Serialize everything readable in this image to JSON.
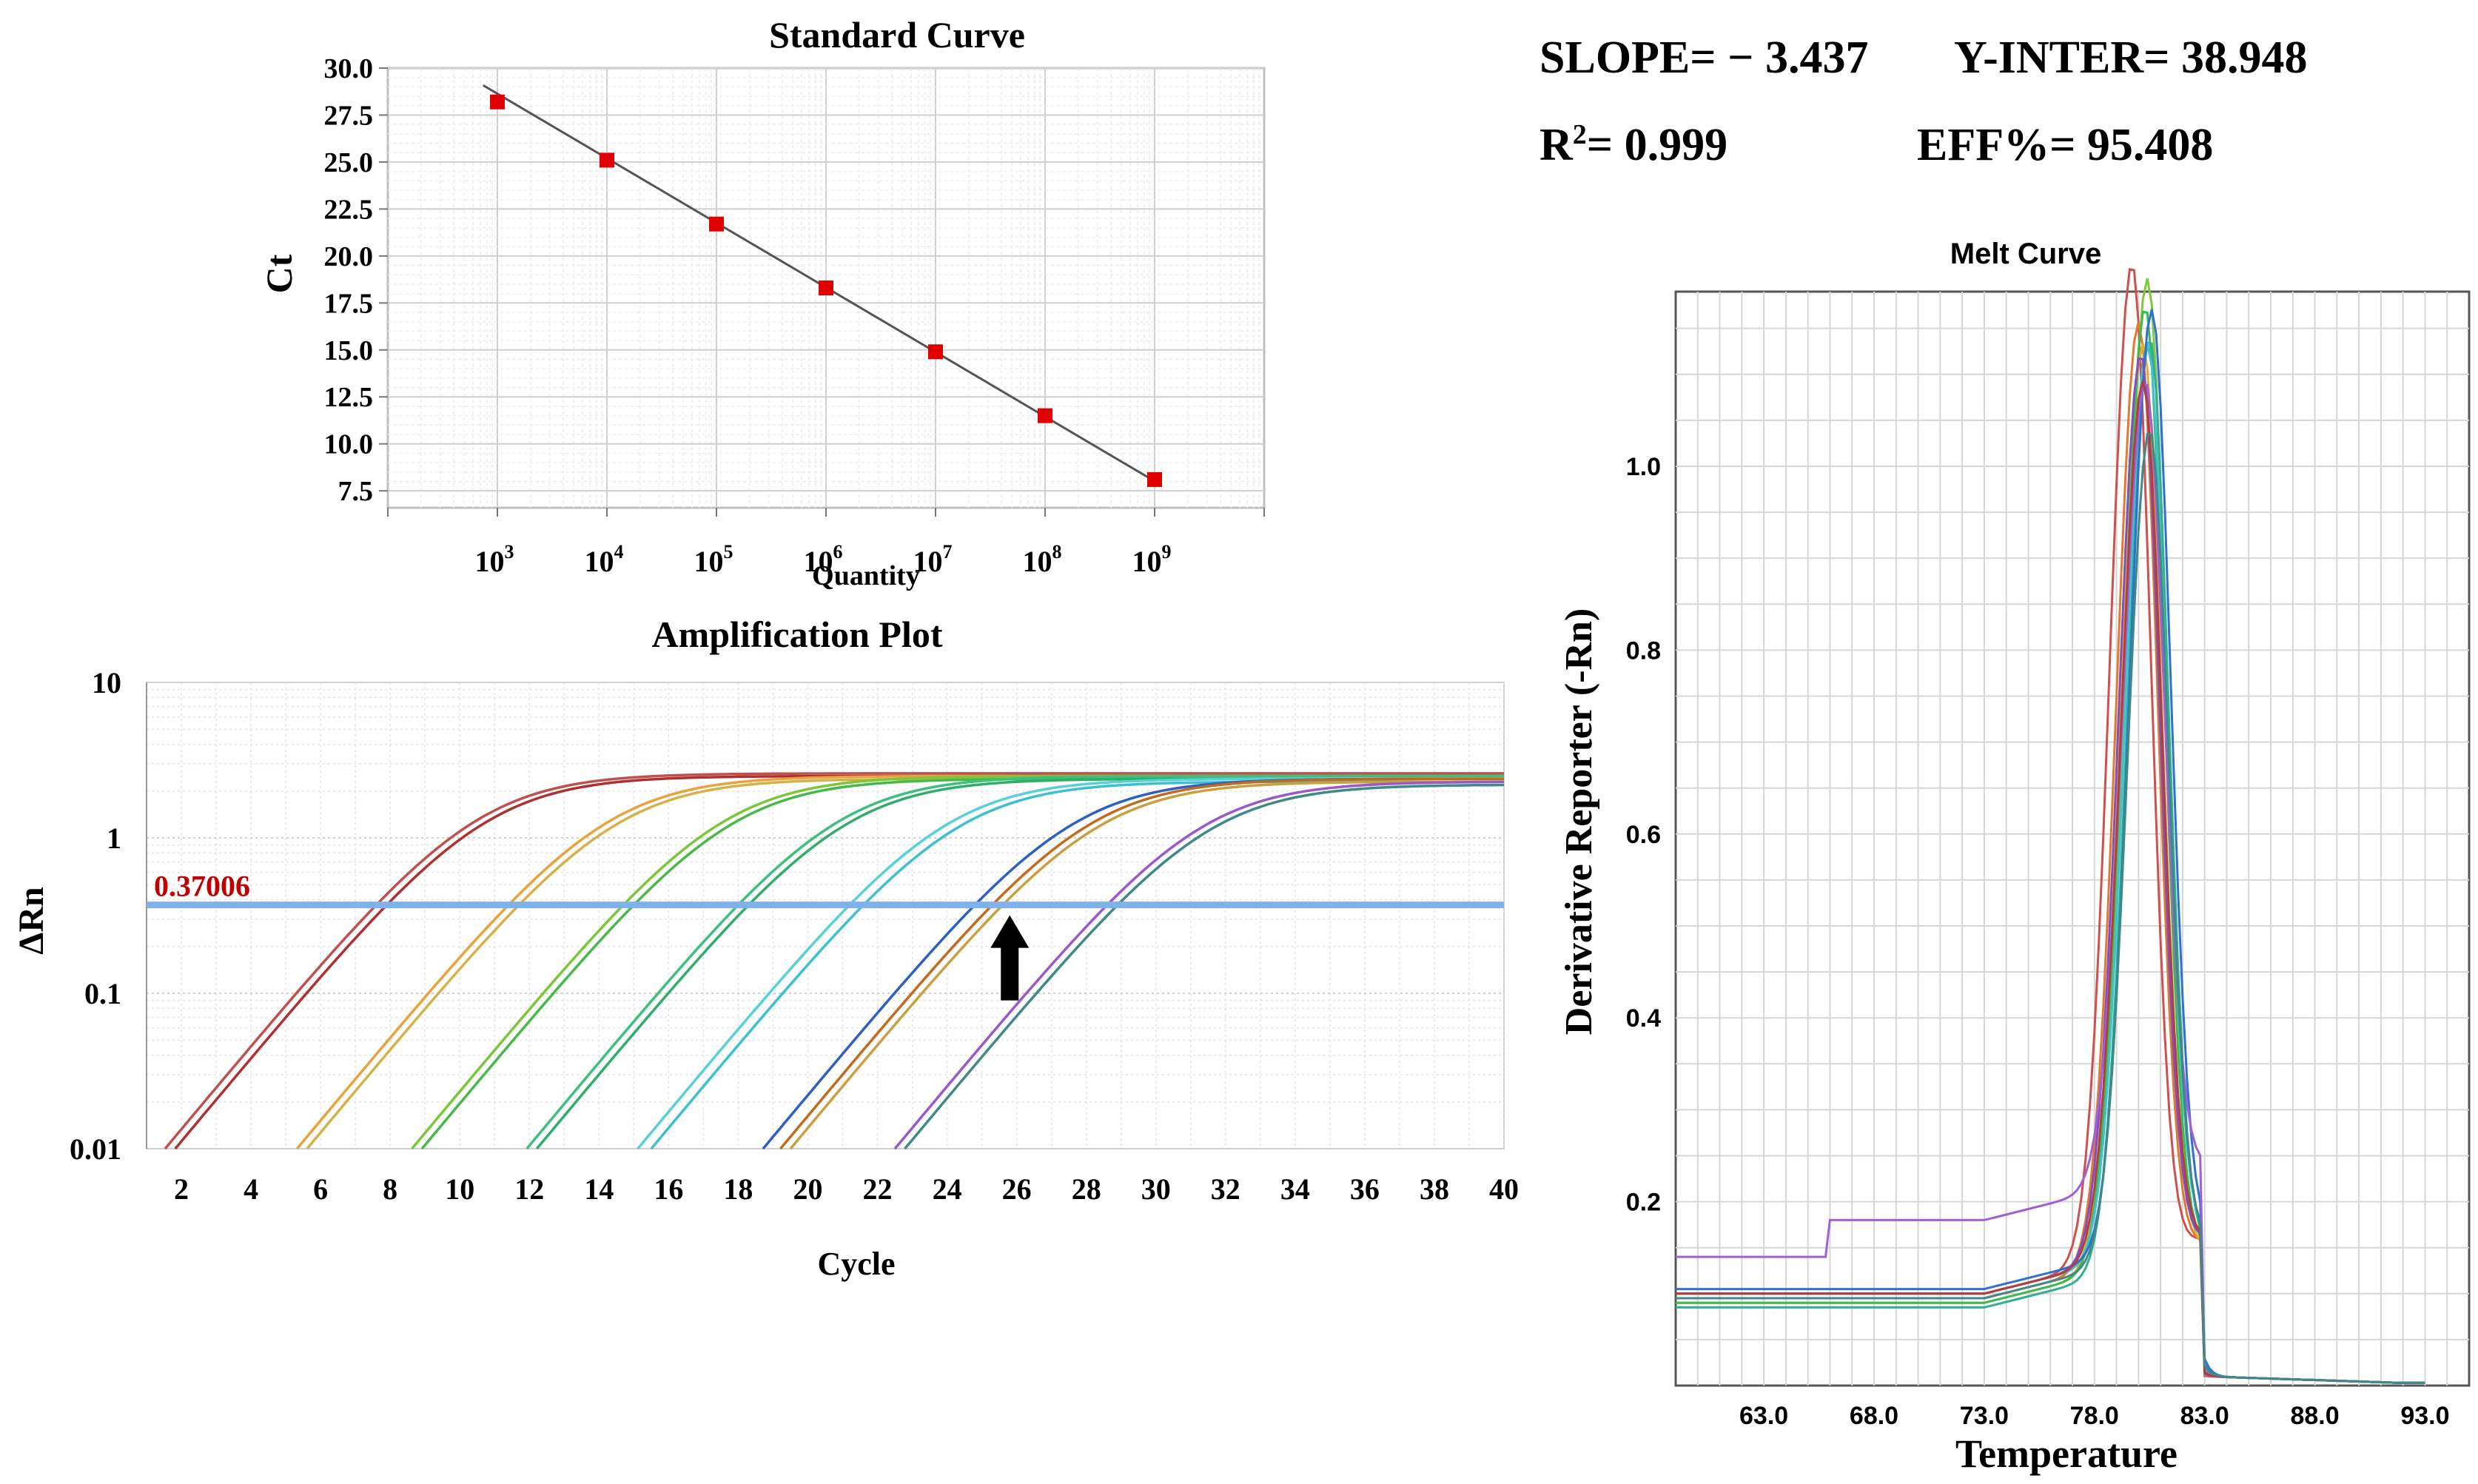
{
  "stats": {
    "slope": "SLOPE= − 3.437",
    "y_inter": "Y-INTER= 38.948",
    "r2_prefix": "R",
    "r2_sup": "2",
    "r2_value": "= 0.999",
    "eff": "EFF%= 95.408"
  },
  "colors": {
    "standard_points": "#e00000",
    "standard_line": "#555555",
    "threshold_line": "#7fb2e8",
    "threshold_label": "#c00000",
    "grid": "#d9d9d9",
    "arrow": "#000000"
  },
  "chart_data": [
    {
      "type": "scatter",
      "title": "Standard Curve",
      "xlabel": "Quantity",
      "ylabel": "Ct",
      "x_scale": "log10",
      "xlim_log10": [
        2,
        10
      ],
      "ylim": [
        6.6,
        30.0
      ],
      "grid": true,
      "xtick_labels": [
        {
          "base": "10",
          "exp": "3",
          "log10": 3
        },
        {
          "base": "10",
          "exp": "4",
          "log10": 4
        },
        {
          "base": "10",
          "exp": "5",
          "log10": 5
        },
        {
          "base": "10",
          "exp": "6",
          "log10": 6
        },
        {
          "base": "10",
          "exp": "7",
          "log10": 7
        },
        {
          "base": "10",
          "exp": "8",
          "log10": 8
        },
        {
          "base": "10",
          "exp": "9",
          "log10": 9
        }
      ],
      "ytick_labels": [
        "30.0",
        "27.5",
        "25.0",
        "22.5",
        "20.0",
        "17.5",
        "15.0",
        "12.5",
        "10.0",
        "7.5"
      ],
      "ytick_values": [
        30.0,
        27.5,
        25.0,
        22.5,
        20.0,
        17.5,
        15.0,
        12.5,
        10.0,
        7.5
      ],
      "points": [
        {
          "x_log10": 3,
          "y": 28.2
        },
        {
          "x_log10": 4,
          "y": 25.1
        },
        {
          "x_log10": 5,
          "y": 21.7
        },
        {
          "x_log10": 6,
          "y": 18.3
        },
        {
          "x_log10": 7,
          "y": 14.9
        },
        {
          "x_log10": 8,
          "y": 11.5
        },
        {
          "x_log10": 9,
          "y": 8.1
        }
      ],
      "fit_line": {
        "slope": -3.437,
        "intercept": 38.948,
        "x_from_log10": 2.87,
        "x_to_log10": 9.0
      }
    },
    {
      "type": "line",
      "title": "Amplification Plot",
      "xlabel": "Cycle",
      "ylabel": "ΔRn",
      "y_scale": "log10",
      "xlim": [
        1,
        40
      ],
      "ylim": [
        0.01,
        10
      ],
      "grid": true,
      "xtick_labels": [
        "2",
        "4",
        "6",
        "8",
        "10",
        "12",
        "14",
        "16",
        "18",
        "20",
        "22",
        "24",
        "26",
        "28",
        "30",
        "32",
        "34",
        "36",
        "38",
        "40"
      ],
      "xtick_values": [
        2,
        4,
        6,
        8,
        10,
        12,
        14,
        16,
        18,
        20,
        22,
        24,
        26,
        28,
        30,
        32,
        34,
        36,
        38,
        40
      ],
      "ytick_labels": [
        "10",
        "1",
        "0.1",
        "0.01"
      ],
      "ytick_values": [
        10,
        1,
        0.1,
        0.01
      ],
      "threshold": {
        "value": 0.37006,
        "label": "0.37006"
      },
      "arrow_at_cycle": 25.8,
      "series": [
        {
          "ct": 7.6,
          "color": "#c0504d",
          "plateau": 2.6
        },
        {
          "ct": 7.9,
          "color": "#b03030",
          "plateau": 2.5
        },
        {
          "ct": 11.4,
          "color": "#e8a33c",
          "plateau": 2.5
        },
        {
          "ct": 11.7,
          "color": "#d4b24a",
          "plateau": 2.4
        },
        {
          "ct": 14.7,
          "color": "#7cc63a",
          "plateau": 2.5
        },
        {
          "ct": 15.0,
          "color": "#49b84a",
          "plateau": 2.4
        },
        {
          "ct": 18.0,
          "color": "#3fbf7f",
          "plateau": 2.5
        },
        {
          "ct": 18.3,
          "color": "#2fae6a",
          "plateau": 2.4
        },
        {
          "ct": 21.2,
          "color": "#58d0d8",
          "plateau": 2.4
        },
        {
          "ct": 21.6,
          "color": "#3cc0d0",
          "plateau": 2.3
        },
        {
          "ct": 24.8,
          "color": "#2f5fc0",
          "plateau": 2.4
        },
        {
          "ct": 25.3,
          "color": "#c46a1e",
          "plateau": 2.4
        },
        {
          "ct": 25.6,
          "color": "#c9a040",
          "plateau": 2.3
        },
        {
          "ct": 28.6,
          "color": "#9a59c9",
          "plateau": 2.3
        },
        {
          "ct": 28.9,
          "color": "#3e8a86",
          "plateau": 2.2
        }
      ]
    },
    {
      "type": "line",
      "title": "Melt Curve",
      "xlabel": "Temperature",
      "ylabel": "Derivative Reporter (-Rn)",
      "xlim": [
        59.0,
        95.0
      ],
      "ylim": [
        0.0,
        1.19
      ],
      "grid": true,
      "xtick_labels": [
        "63.0",
        "68.0",
        "73.0",
        "78.0",
        "83.0",
        "88.0",
        "93.0"
      ],
      "xtick_values": [
        63.0,
        68.0,
        73.0,
        78.0,
        83.0,
        88.0,
        93.0
      ],
      "ytick_labels": [
        "1.0",
        "0.8",
        "0.6",
        "0.4",
        "0.2"
      ],
      "ytick_values": [
        1.0,
        0.8,
        0.6,
        0.4,
        0.2
      ],
      "series": [
        {
          "peak_temp": 79.7,
          "peak": 1.18,
          "base": 0.1,
          "color": "#d05050"
        },
        {
          "peak_temp": 80.0,
          "peak": 1.12,
          "base": 0.095,
          "color": "#e07a30"
        },
        {
          "peak_temp": 80.2,
          "peak": 1.1,
          "base": 0.09,
          "color": "#e0b030"
        },
        {
          "peak_temp": 80.4,
          "peak": 1.16,
          "base": 0.1,
          "color": "#80c840"
        },
        {
          "peak_temp": 80.3,
          "peak": 1.14,
          "base": 0.09,
          "color": "#40b850"
        },
        {
          "peak_temp": 80.5,
          "peak": 1.11,
          "base": 0.085,
          "color": "#30b090"
        },
        {
          "peak_temp": 80.4,
          "peak": 1.09,
          "base": 0.1,
          "color": "#40c0d0"
        },
        {
          "peak_temp": 80.6,
          "peak": 1.12,
          "base": 0.105,
          "color": "#3070d0"
        },
        {
          "peak_temp": 80.1,
          "peak": 1.08,
          "base": 0.1,
          "color": "#8050c0"
        },
        {
          "peak_temp": 80.3,
          "peak": 0.97,
          "base": 0.14,
          "color": "#a060d8"
        },
        {
          "peak_temp": 80.2,
          "peak": 1.05,
          "base": 0.1,
          "color": "#b04040"
        },
        {
          "peak_temp": 80.5,
          "peak": 1.0,
          "base": 0.095,
          "color": "#3e8a86"
        }
      ]
    }
  ]
}
